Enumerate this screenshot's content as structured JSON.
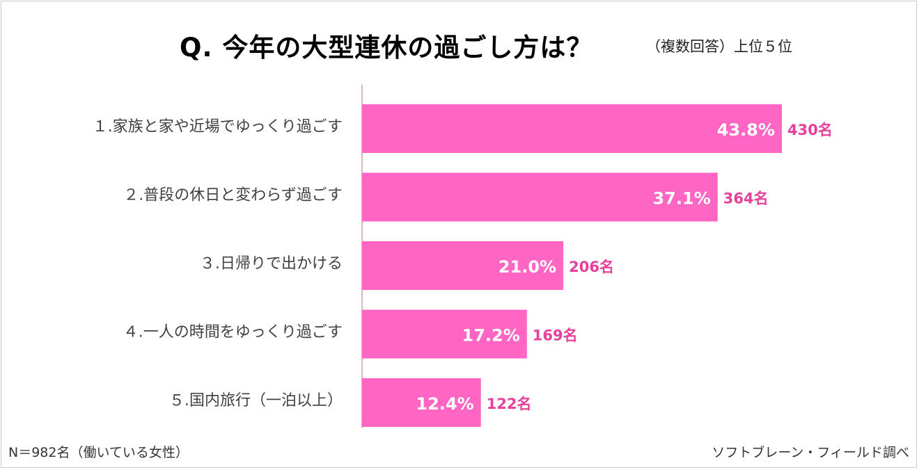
{
  "chart_data": {
    "type": "bar",
    "orientation": "horizontal",
    "title": "Q.  今年の大型連休の過ごし方は？",
    "subtitle": "（複数回答）上位５位",
    "categories": [
      "１.家族と家や近場でゆっくり過ごす",
      "２.普段の休日と変わらず過ごす",
      "３.日帰りで出かける",
      "４.一人の時間をゆっくり過ごす",
      "５.国内旅行（一泊以上）"
    ],
    "values": [
      43.8,
      37.1,
      21.0,
      17.2,
      12.4
    ],
    "value_labels": [
      "43.8%",
      "37.1%",
      "21.0%",
      "17.2%",
      "12.4%"
    ],
    "count_labels": [
      "430名",
      "364名",
      "206名",
      "169名",
      "122名"
    ],
    "xlim": [
      0,
      50
    ],
    "grid": false,
    "bar_color": "#ff66c4",
    "count_color": "#e8409a",
    "axis_color": "#c9a0a0"
  },
  "footer": {
    "sample": "N＝982名（働いている女性）",
    "source": "ソフトブレーン・フィールド調べ"
  }
}
